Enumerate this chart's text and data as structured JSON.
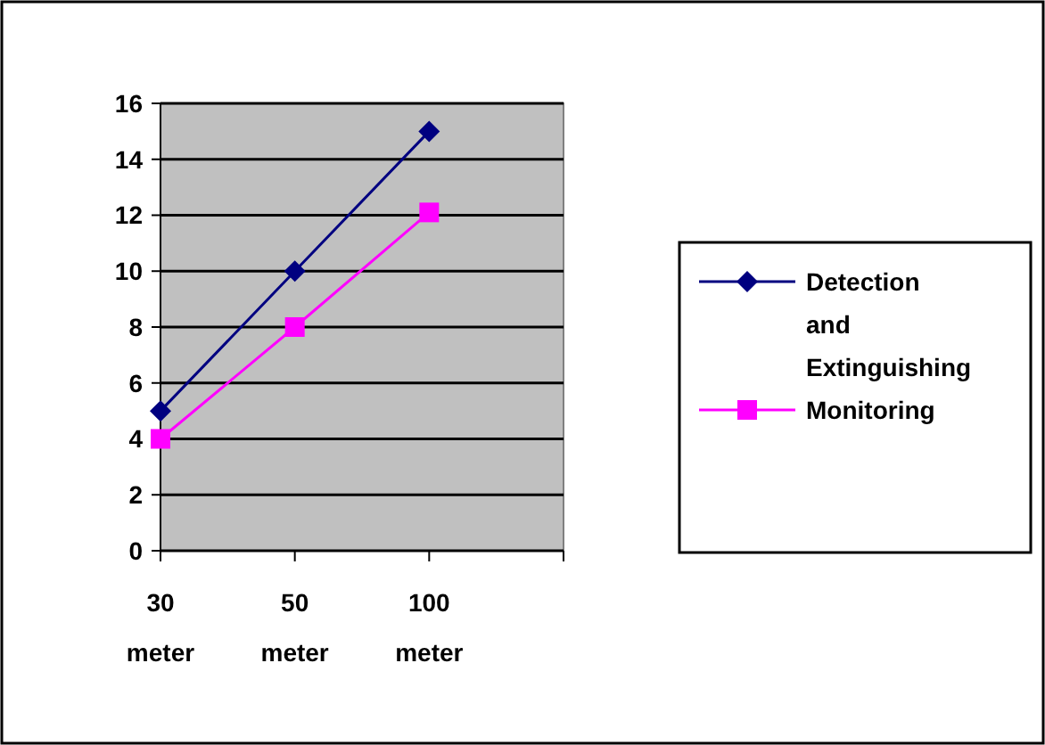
{
  "chart_data": {
    "type": "line",
    "categories": [
      "30 meter",
      "50 meter",
      "100 meter",
      null
    ],
    "series": [
      {
        "name": "Detection and Extinguishing",
        "color": "#000080",
        "marker": "diamond",
        "values": [
          5,
          10,
          15,
          null
        ]
      },
      {
        "name": "Monitoring",
        "color": "#ff00ff",
        "marker": "square",
        "values": [
          4,
          8,
          12.1,
          null
        ]
      }
    ],
    "ylim": [
      0,
      16
    ],
    "yticks": [
      0,
      2,
      4,
      6,
      8,
      10,
      12,
      14,
      16
    ],
    "grid": "y",
    "legend": "right"
  }
}
